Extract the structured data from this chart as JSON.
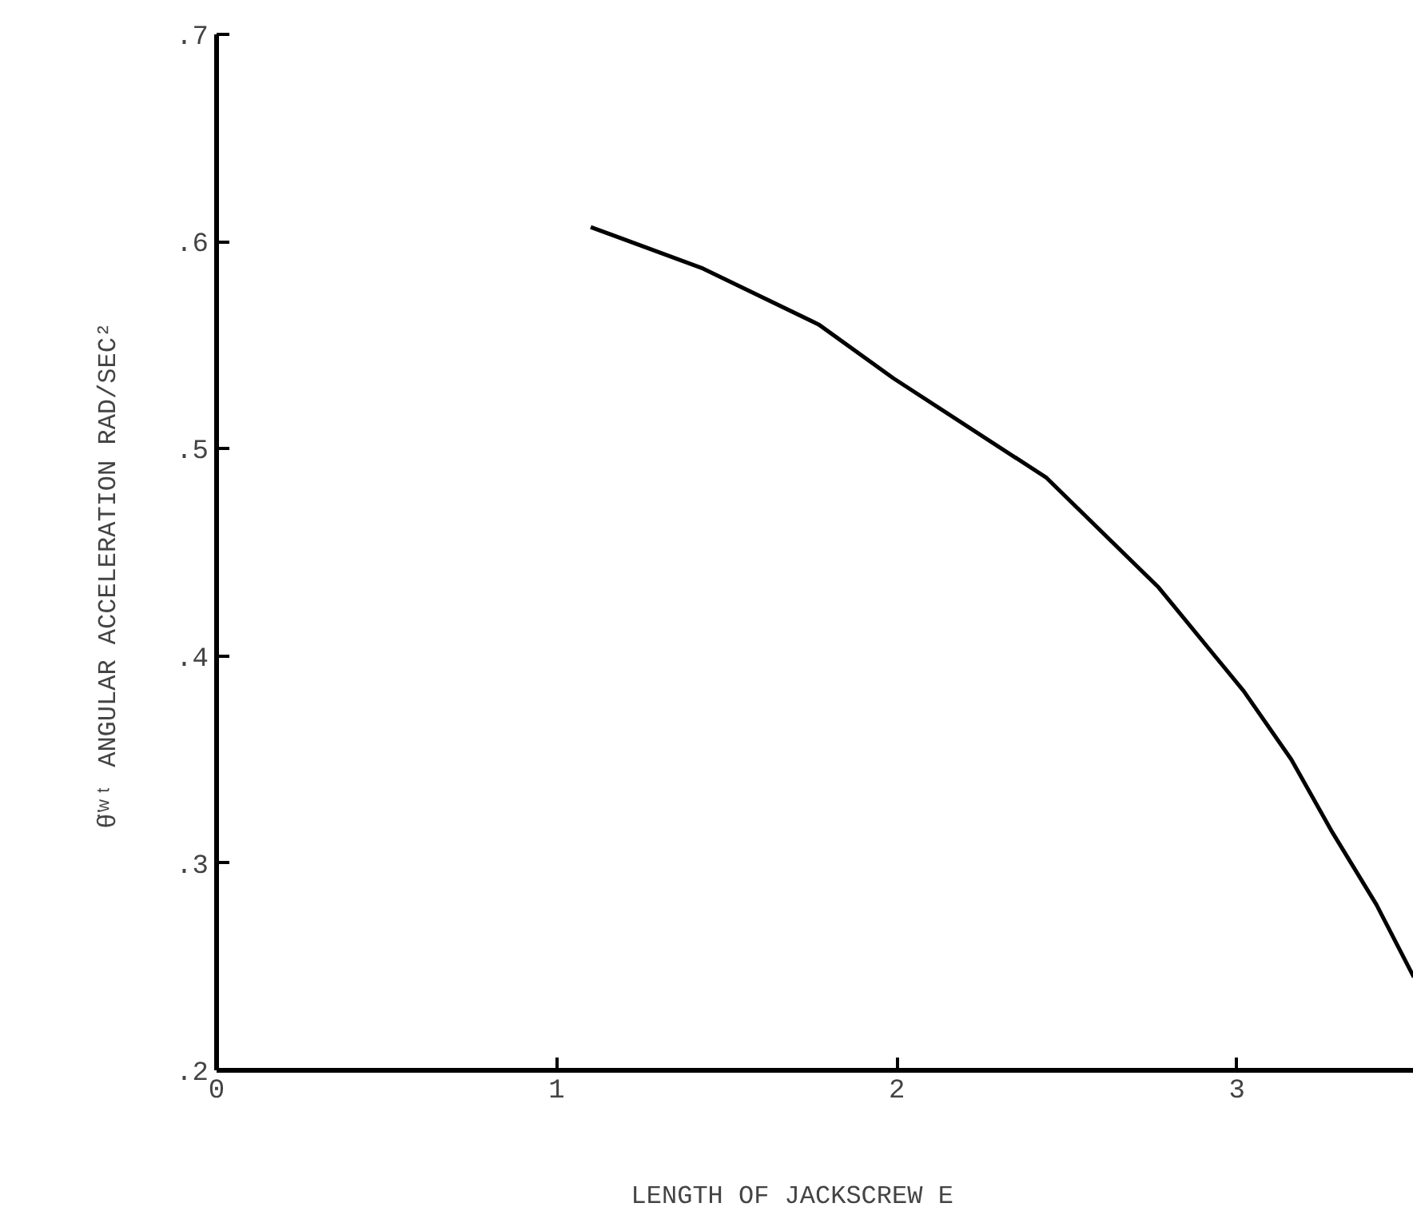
{
  "chart_data": {
    "type": "line",
    "xlabel": "LENGTH  OF  JACKSCREW  E",
    "ylabel": "θ̈ʷᵗ  ANGULAR  ACCELERATION  RAD/SEC²",
    "x": [
      1.1,
      1.43,
      1.77,
      1.99,
      2.44,
      2.77,
      3.02,
      3.16,
      3.28,
      3.41,
      3.52
    ],
    "series": [
      {
        "color": "#000000",
        "values": [
          0.607,
          0.587,
          0.56,
          0.534,
          0.486,
          0.433,
          0.383,
          0.35,
          0.315,
          0.28,
          0.245
        ]
      }
    ],
    "xlim": [
      0,
      3.52
    ],
    "ylim": [
      0.2,
      0.7
    ],
    "xticks": [
      0,
      1,
      2,
      3
    ],
    "yticks": [
      {
        "value": 0.2,
        "label": ".2"
      },
      {
        "value": 0.3,
        "label": ".3"
      },
      {
        "value": 0.4,
        "label": ".4"
      },
      {
        "value": 0.5,
        "label": ".5"
      },
      {
        "value": 0.6,
        "label": ".6"
      },
      {
        "value": 0.7,
        "label": ".7"
      }
    ],
    "line_style": "solid"
  }
}
